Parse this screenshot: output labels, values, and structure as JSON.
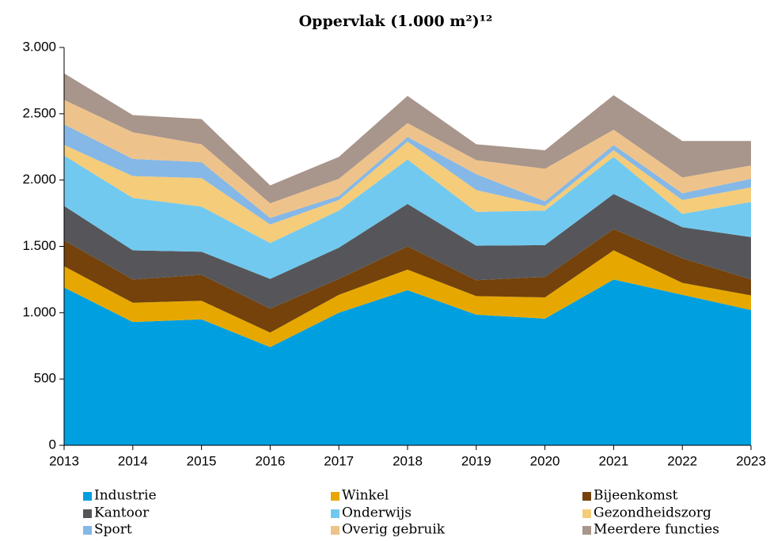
{
  "chart_data": {
    "type": "stacked_area",
    "title": "Oppervlak (1.000 m²)¹²",
    "x": [
      2013,
      2014,
      2015,
      2016,
      2017,
      2018,
      2019,
      2020,
      2021,
      2022,
      2023
    ],
    "xlim": [
      2013,
      2023
    ],
    "xticks": [
      2013,
      2014,
      2015,
      2016,
      2017,
      2018,
      2019,
      2020,
      2021,
      2022,
      2023
    ],
    "ylim": [
      0,
      3000
    ],
    "yticks": [
      0,
      500,
      {
        "value": 1000,
        "label": "1.000"
      },
      {
        "value": 1500,
        "label": "1.500"
      },
      {
        "value": 2000,
        "label": "2.000"
      },
      {
        "value": 2500,
        "label": "2.500"
      },
      {
        "value": 3000,
        "label": "3.000"
      }
    ],
    "grid": false,
    "legend": "bottom",
    "series": [
      {
        "name": "Industrie",
        "color": "#009fe0",
        "values": [
          1190,
          930,
          950,
          740,
          1000,
          1170,
          985,
          955,
          1250,
          1135,
          1020
        ]
      },
      {
        "name": "Winkel",
        "color": "#e6a800",
        "values": [
          160,
          145,
          140,
          110,
          135,
          155,
          140,
          160,
          220,
          90,
          110
        ]
      },
      {
        "name": "Bijeenkomst",
        "color": "#74420a",
        "values": [
          195,
          175,
          195,
          180,
          120,
          175,
          120,
          155,
          160,
          185,
          120
        ]
      },
      {
        "name": "Kantoor",
        "color": "#56565a",
        "values": [
          260,
          220,
          175,
          225,
          235,
          320,
          260,
          240,
          265,
          235,
          320
        ]
      },
      {
        "name": "Onderwijs",
        "color": "#72c9ef",
        "values": [
          380,
          395,
          340,
          270,
          280,
          335,
          255,
          260,
          280,
          100,
          265
        ]
      },
      {
        "name": "Gezondheidszorg",
        "color": "#f5cc7a",
        "values": [
          80,
          165,
          215,
          140,
          80,
          135,
          165,
          35,
          50,
          105,
          110
        ]
      },
      {
        "name": "Sport",
        "color": "#85b8e6",
        "values": [
          155,
          130,
          120,
          50,
          30,
          35,
          120,
          35,
          40,
          50,
          65
        ]
      },
      {
        "name": "Overig gebruik",
        "color": "#eec38b",
        "values": [
          185,
          200,
          135,
          110,
          130,
          105,
          105,
          245,
          115,
          120,
          100
        ]
      },
      {
        "name": "Meerdere functies",
        "color": "#a8958b",
        "values": [
          200,
          130,
          190,
          135,
          165,
          205,
          120,
          140,
          260,
          275,
          185
        ]
      }
    ]
  }
}
